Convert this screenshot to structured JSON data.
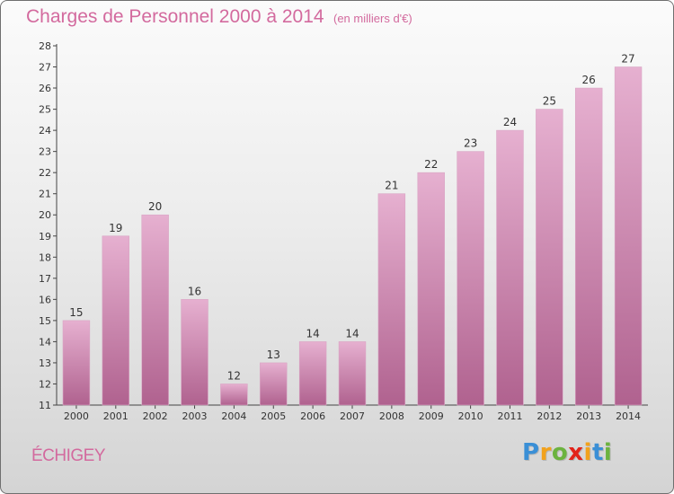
{
  "header": {
    "title": "Charges de Personnel 2000 à 2014",
    "subtitle": "(en milliers d'€)"
  },
  "footer": {
    "place": "ÉCHIGEY",
    "logo_letters": [
      "P",
      "r",
      "o",
      "x",
      "i",
      "t",
      "i"
    ],
    "logo_colors": [
      "#3a8fd6",
      "#f2a21c",
      "#6cb33f",
      "#e2231a",
      "#f2a21c",
      "#3a8fd6",
      "#6cb33f"
    ]
  },
  "colors": {
    "bar": "#cf86b1",
    "bar_light": "#e6b0d0",
    "bar_dark": "#b0628f",
    "text_accent": "#d36a9e"
  },
  "chart_data": {
    "type": "bar",
    "title": "Charges de Personnel 2000 à 2014",
    "subtitle": "(en milliers d'€)",
    "categories": [
      "2000",
      "2001",
      "2002",
      "2003",
      "2004",
      "2005",
      "2006",
      "2007",
      "2008",
      "2009",
      "2010",
      "2011",
      "2012",
      "2013",
      "2014"
    ],
    "values": [
      15,
      19,
      20,
      16,
      12,
      13,
      14,
      14,
      21,
      22,
      23,
      24,
      25,
      26,
      27
    ],
    "data_labels": [
      "15",
      "19",
      "20",
      "16",
      "12",
      "13",
      "14",
      "14",
      "21",
      "22",
      "23",
      "24",
      "25",
      "26",
      "27"
    ],
    "ylim": [
      11,
      28
    ],
    "yticks": [
      "11",
      "12",
      "13",
      "14",
      "15",
      "16",
      "17",
      "18",
      "19",
      "20",
      "21",
      "22",
      "23",
      "24",
      "25",
      "26",
      "27",
      "28"
    ],
    "grid": false,
    "legend": "none",
    "xlabel": "",
    "ylabel": ""
  }
}
